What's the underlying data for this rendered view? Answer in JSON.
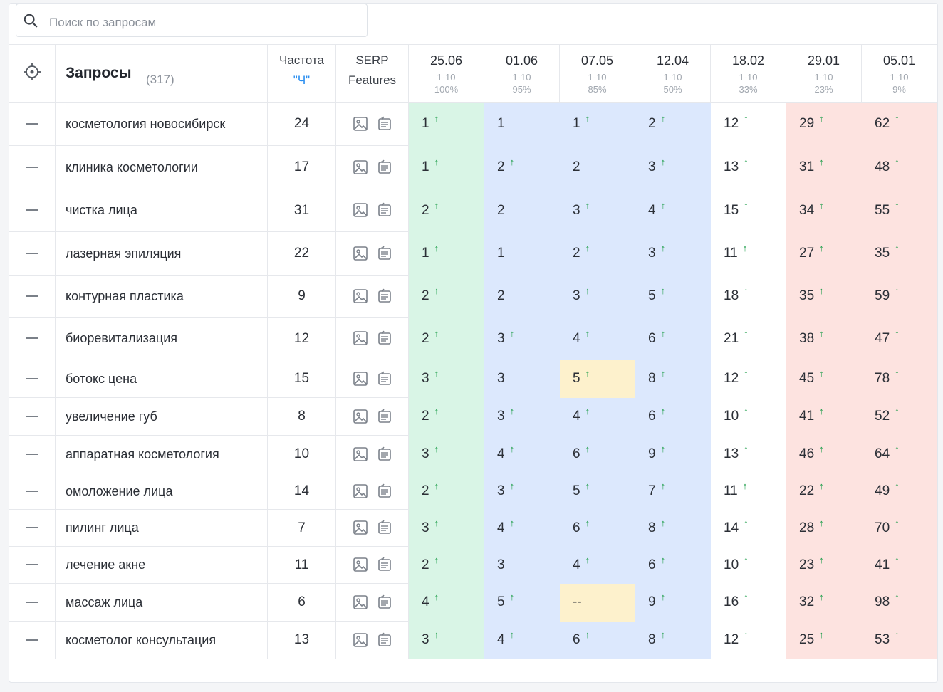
{
  "search": {
    "placeholder": "Поиск по запросам"
  },
  "header": {
    "queries_label": "Запросы",
    "queries_count": "(317)",
    "freq_label": "Частота",
    "freq_sub": "\"Ч\"",
    "serp_label_1": "SERP",
    "serp_label_2": "Features",
    "dates": [
      {
        "date": "25.06",
        "range": "1-10",
        "pct": "100%"
      },
      {
        "date": "01.06",
        "range": "1-10",
        "pct": "95%"
      },
      {
        "date": "07.05",
        "range": "1-10",
        "pct": "85%"
      },
      {
        "date": "12.04",
        "range": "1-10",
        "pct": "50%"
      },
      {
        "date": "18.02",
        "range": "1-10",
        "pct": "33%"
      },
      {
        "date": "29.01",
        "range": "1-10",
        "pct": "23%"
      },
      {
        "date": "05.01",
        "range": "1-10",
        "pct": "9%"
      }
    ]
  },
  "column_backgrounds": [
    "green",
    "blue",
    "blue",
    "blue",
    "white",
    "red",
    "red"
  ],
  "colors": {
    "green": "#d9f5e6",
    "blue": "#dce8fd",
    "red": "#fde3e0",
    "yellow": "#fdf1cc",
    "arrow": "#1e9e4a",
    "accent": "#2a8ef0"
  },
  "rows": [
    {
      "query": "косметология новосибирск",
      "freq": "24",
      "pos": [
        [
          "1",
          true
        ],
        [
          "1",
          false
        ],
        [
          "1",
          true
        ],
        [
          "2",
          true
        ],
        [
          "12",
          true
        ],
        [
          "29",
          true
        ],
        [
          "62",
          true
        ]
      ],
      "hl": []
    },
    {
      "query": "клиника косметологии",
      "freq": "17",
      "pos": [
        [
          "1",
          true
        ],
        [
          "2",
          true
        ],
        [
          "2",
          false
        ],
        [
          "3",
          true
        ],
        [
          "13",
          true
        ],
        [
          "31",
          true
        ],
        [
          "48",
          true
        ]
      ],
      "hl": []
    },
    {
      "query": "чистка лица",
      "freq": "31",
      "pos": [
        [
          "2",
          true
        ],
        [
          "2",
          false
        ],
        [
          "3",
          true
        ],
        [
          "4",
          true
        ],
        [
          "15",
          true
        ],
        [
          "34",
          true
        ],
        [
          "55",
          true
        ]
      ],
      "hl": []
    },
    {
      "query": "лазерная эпиляция",
      "freq": "22",
      "pos": [
        [
          "1",
          true
        ],
        [
          "1",
          false
        ],
        [
          "2",
          true
        ],
        [
          "3",
          true
        ],
        [
          "11",
          true
        ],
        [
          "27",
          true
        ],
        [
          "35",
          true
        ]
      ],
      "hl": []
    },
    {
      "query": "контурная пластика",
      "freq": "9",
      "pos": [
        [
          "2",
          true
        ],
        [
          "2",
          false
        ],
        [
          "3",
          true
        ],
        [
          "5",
          true
        ],
        [
          "18",
          true
        ],
        [
          "35",
          true
        ],
        [
          "59",
          true
        ]
      ],
      "hl": []
    },
    {
      "query": "биоревитализация",
      "freq": "12",
      "pos": [
        [
          "2",
          true
        ],
        [
          "3",
          true
        ],
        [
          "4",
          true
        ],
        [
          "6",
          true
        ],
        [
          "21",
          true
        ],
        [
          "38",
          true
        ],
        [
          "47",
          true
        ]
      ],
      "hl": []
    },
    {
      "query": "ботокс цена",
      "freq": "15",
      "pos": [
        [
          "3",
          true
        ],
        [
          "3",
          false
        ],
        [
          "5",
          true
        ],
        [
          "8",
          true
        ],
        [
          "12",
          true
        ],
        [
          "45",
          true
        ],
        [
          "78",
          true
        ]
      ],
      "hl": [
        2
      ]
    },
    {
      "query": "увеличение губ",
      "freq": "8",
      "pos": [
        [
          "2",
          true
        ],
        [
          "3",
          true
        ],
        [
          "4",
          true
        ],
        [
          "6",
          true
        ],
        [
          "10",
          true
        ],
        [
          "41",
          true
        ],
        [
          "52",
          true
        ]
      ],
      "hl": []
    },
    {
      "query": "аппаратная косметология",
      "freq": "10",
      "pos": [
        [
          "3",
          true
        ],
        [
          "4",
          true
        ],
        [
          "6",
          true
        ],
        [
          "9",
          true
        ],
        [
          "13",
          true
        ],
        [
          "46",
          true
        ],
        [
          "64",
          true
        ]
      ],
      "hl": []
    },
    {
      "query": "омоложение лица",
      "freq": "14",
      "pos": [
        [
          "2",
          true
        ],
        [
          "3",
          true
        ],
        [
          "5",
          true
        ],
        [
          "7",
          true
        ],
        [
          "11",
          true
        ],
        [
          "22",
          true
        ],
        [
          "49",
          true
        ]
      ],
      "hl": []
    },
    {
      "query": "пилинг лица",
      "freq": "7",
      "pos": [
        [
          "3",
          true
        ],
        [
          "4",
          true
        ],
        [
          "6",
          true
        ],
        [
          "8",
          true
        ],
        [
          "14",
          true
        ],
        [
          "28",
          true
        ],
        [
          "70",
          true
        ]
      ],
      "hl": []
    },
    {
      "query": "лечение акне",
      "freq": "11",
      "pos": [
        [
          "2",
          true
        ],
        [
          "3",
          false
        ],
        [
          "4",
          true
        ],
        [
          "6",
          true
        ],
        [
          "10",
          true
        ],
        [
          "23",
          true
        ],
        [
          "41",
          true
        ]
      ],
      "hl": []
    },
    {
      "query": "массаж лица",
      "freq": "6",
      "pos": [
        [
          "4",
          true
        ],
        [
          "5",
          true
        ],
        [
          "--",
          false
        ],
        [
          "9",
          true
        ],
        [
          "16",
          true
        ],
        [
          "32",
          true
        ],
        [
          "98",
          true
        ]
      ],
      "hl": [
        2
      ]
    },
    {
      "query": "косметолог консультация",
      "freq": "13",
      "pos": [
        [
          "3",
          true
        ],
        [
          "4",
          true
        ],
        [
          "6",
          true
        ],
        [
          "8",
          true
        ],
        [
          "12",
          true
        ],
        [
          "25",
          true
        ],
        [
          "53",
          true
        ]
      ],
      "hl": []
    }
  ],
  "icons": {
    "target": "crosshair-icon",
    "search": "search-icon",
    "serp_1": "image-icon",
    "serp_2": "snippet-icon",
    "row_action": "minus-icon",
    "trend": "arrow-up-icon"
  },
  "arrow_glyph": "↑"
}
